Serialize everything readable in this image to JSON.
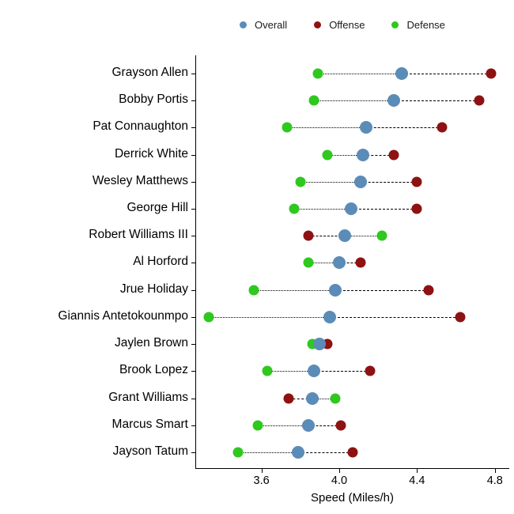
{
  "chart_data": {
    "type": "scatter",
    "title": "",
    "xlabel": "Speed (Miles/h)",
    "ylabel": "",
    "xlim": [
      3.26,
      4.87
    ],
    "xticks": [
      3.6,
      4.0,
      4.4,
      4.8
    ],
    "xtick_labels": [
      "3.6",
      "4.0",
      "4.4",
      "4.8"
    ],
    "grid": false,
    "legend_position": "top",
    "categories": [
      "Grayson Allen",
      "Bobby Portis",
      "Pat Connaughton",
      "Derrick White",
      "Wesley Matthews",
      "George Hill",
      "Robert Williams III",
      "Al Horford",
      "Jrue Holiday",
      "Giannis Antetokounmpo",
      "Jaylen Brown",
      "Brook Lopez",
      "Grant Williams",
      "Marcus Smart",
      "Jayson Tatum"
    ],
    "series": [
      {
        "name": "Overall",
        "color": "#5b8cb8",
        "marker_size": 16,
        "values": [
          4.32,
          4.28,
          4.14,
          4.12,
          4.11,
          4.06,
          4.03,
          4.0,
          3.98,
          3.95,
          3.9,
          3.87,
          3.86,
          3.84,
          3.79
        ]
      },
      {
        "name": "Offense",
        "color": "#8e1212",
        "marker_size": 13,
        "values": [
          4.78,
          4.72,
          4.53,
          4.28,
          4.4,
          4.4,
          3.84,
          4.11,
          4.46,
          4.62,
          3.94,
          4.16,
          3.74,
          4.01,
          4.07
        ]
      },
      {
        "name": "Defense",
        "color": "#2fc81e",
        "marker_size": 13,
        "values": [
          3.89,
          3.87,
          3.73,
          3.94,
          3.8,
          3.77,
          4.22,
          3.84,
          3.56,
          3.33,
          3.86,
          3.63,
          3.98,
          3.58,
          3.48
        ]
      }
    ],
    "connector_style": {
      "overall_to_defense": "dotted",
      "overall_to_offense": "dashed",
      "color": "#000000"
    }
  }
}
